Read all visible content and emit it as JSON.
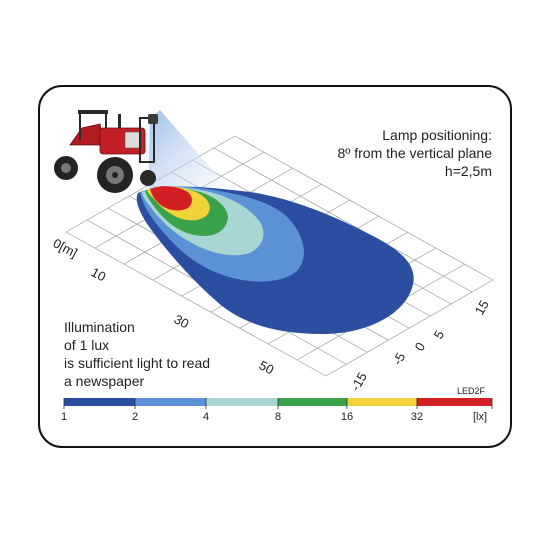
{
  "lamp_text": {
    "line1": "Lamp positioning:",
    "line2": "8º from the vertical plane",
    "line3": "h=2,5m"
  },
  "illum_text": {
    "line1": "Illumination",
    "line2": "of 1 lux",
    "line3": "is sufficient light to read",
    "line4": "a newspaper"
  },
  "model_label": "LED2F",
  "distance_axis": {
    "zero_label": "0[m]",
    "ticks": [
      "10",
      "30",
      "50"
    ]
  },
  "lateral_axis": {
    "ticks": [
      "15",
      "5",
      "0",
      "-5",
      "-15"
    ]
  },
  "legend": {
    "unit": "[lx]",
    "ticks": [
      "1",
      "2",
      "4",
      "8",
      "16",
      "32"
    ],
    "colors": [
      "#2b4ea0",
      "#5b92d6",
      "#a8d6d2",
      "#3aa24a",
      "#f2d23a",
      "#d31f26"
    ]
  },
  "zone_colors": {
    "lux_1": "#2b4ea0",
    "lux_2": "#5b92d6",
    "lux_4": "#a8d6d2",
    "lux_8": "#3aa24a",
    "lux_16": "#f2d23a",
    "lux_32": "#d31f26"
  }
}
